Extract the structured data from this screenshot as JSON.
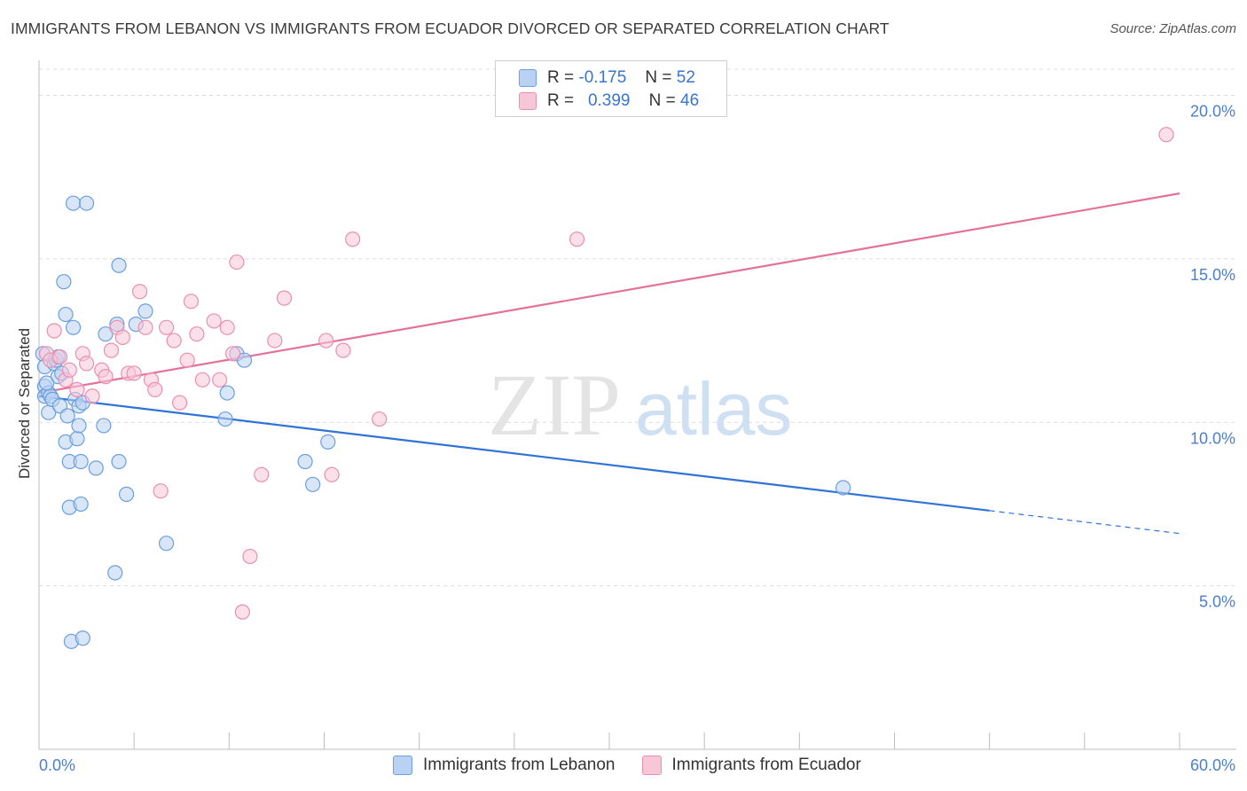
{
  "title": "IMMIGRANTS FROM LEBANON VS IMMIGRANTS FROM ECUADOR DIVORCED OR SEPARATED CORRELATION CHART",
  "source": "Source: ZipAtlas.com",
  "watermark": {
    "zip": "ZIP",
    "atlas": "atlas"
  },
  "legend": {
    "rows": [
      {
        "r_label": "R =",
        "r_value": "-0.175",
        "n_label": "N =",
        "n_value": "52"
      },
      {
        "r_label": "R =",
        "r_value": "0.399",
        "n_label": "N =",
        "n_value": "46"
      }
    ]
  },
  "colors": {
    "lebanon": "#6a9fe0",
    "lebanon_fill": "#b9d2f3",
    "lebanon_line": "#2f73d6",
    "ecuador": "#eb8fb0",
    "ecuador_fill": "#f7c7d8",
    "ecuador_line": "#e4719a",
    "tick_label": "#4a7fcf",
    "grid": "#dcdcdc"
  },
  "chart_data": {
    "type": "scatter",
    "title": "IMMIGRANTS FROM LEBANON VS IMMIGRANTS FROM ECUADOR DIVORCED OR SEPARATED CORRELATION CHART",
    "ylabel": "Divorced or Separated",
    "xlabel": "",
    "xlim": [
      0,
      60
    ],
    "ylim": [
      0,
      20.8
    ],
    "x_tick_labels": [
      "0.0%",
      "60.0%"
    ],
    "y_ticks": [
      {
        "value": 5,
        "label": "5.0%"
      },
      {
        "value": 10,
        "label": "10.0%"
      },
      {
        "value": 15,
        "label": "15.0%"
      },
      {
        "value": 20,
        "label": "20.0%"
      }
    ],
    "grid": "horizontal dashed",
    "legend_position": "top-center",
    "series": [
      {
        "name": "Immigrants from Lebanon",
        "r": -0.175,
        "n": 52,
        "trend": {
          "x0": 0,
          "y0": 10.8,
          "x1": 60,
          "y1": 6.6,
          "solid_until_x": 50
        },
        "points": [
          [
            0.2,
            12.1
          ],
          [
            0.3,
            11.7
          ],
          [
            0.3,
            11.1
          ],
          [
            0.3,
            10.8
          ],
          [
            0.5,
            10.9
          ],
          [
            0.5,
            10.3
          ],
          [
            0.6,
            10.8
          ],
          [
            0.7,
            10.7
          ],
          [
            0.8,
            11.8
          ],
          [
            0.9,
            11.9
          ],
          [
            1.0,
            11.4
          ],
          [
            1.1,
            10.5
          ],
          [
            1.2,
            11.5
          ],
          [
            1.3,
            14.3
          ],
          [
            1.4,
            13.3
          ],
          [
            1.4,
            9.4
          ],
          [
            1.5,
            10.2
          ],
          [
            1.6,
            7.4
          ],
          [
            1.6,
            8.8
          ],
          [
            1.7,
            3.3
          ],
          [
            1.8,
            12.9
          ],
          [
            1.8,
            16.7
          ],
          [
            1.9,
            10.7
          ],
          [
            2.0,
            9.5
          ],
          [
            2.1,
            9.9
          ],
          [
            2.1,
            10.5
          ],
          [
            2.2,
            8.8
          ],
          [
            2.2,
            7.5
          ],
          [
            2.3,
            10.6
          ],
          [
            2.3,
            3.4
          ],
          [
            2.5,
            16.7
          ],
          [
            3.0,
            8.6
          ],
          [
            3.4,
            9.9
          ],
          [
            3.5,
            12.7
          ],
          [
            4.0,
            5.4
          ],
          [
            4.1,
            13.0
          ],
          [
            4.2,
            8.8
          ],
          [
            4.2,
            14.8
          ],
          [
            4.6,
            7.8
          ],
          [
            5.1,
            13.0
          ],
          [
            5.6,
            13.4
          ],
          [
            6.7,
            6.3
          ],
          [
            9.8,
            10.1
          ],
          [
            9.9,
            10.9
          ],
          [
            10.4,
            12.1
          ],
          [
            10.8,
            11.9
          ],
          [
            14.0,
            8.8
          ],
          [
            14.4,
            8.1
          ],
          [
            15.2,
            9.4
          ],
          [
            42.3,
            8.0
          ],
          [
            0.4,
            11.2
          ],
          [
            1.0,
            12.0
          ]
        ]
      },
      {
        "name": "Immigrants from Ecuador",
        "r": 0.399,
        "n": 46,
        "trend": {
          "x0": 0,
          "y0": 10.9,
          "x1": 60,
          "y1": 17.0
        },
        "points": [
          [
            0.4,
            12.1
          ],
          [
            0.6,
            11.9
          ],
          [
            0.8,
            12.8
          ],
          [
            1.1,
            12.0
          ],
          [
            1.4,
            11.3
          ],
          [
            1.6,
            11.6
          ],
          [
            2.0,
            11.0
          ],
          [
            2.3,
            12.1
          ],
          [
            2.5,
            11.8
          ],
          [
            2.8,
            10.8
          ],
          [
            3.3,
            11.6
          ],
          [
            3.5,
            11.4
          ],
          [
            3.8,
            12.2
          ],
          [
            4.1,
            12.9
          ],
          [
            4.4,
            12.6
          ],
          [
            4.7,
            11.5
          ],
          [
            5.0,
            11.5
          ],
          [
            5.3,
            14.0
          ],
          [
            5.6,
            12.9
          ],
          [
            5.9,
            11.3
          ],
          [
            6.1,
            11.0
          ],
          [
            6.4,
            7.9
          ],
          [
            6.7,
            12.9
          ],
          [
            7.1,
            12.5
          ],
          [
            7.4,
            10.6
          ],
          [
            7.8,
            11.9
          ],
          [
            8.0,
            13.7
          ],
          [
            8.3,
            12.7
          ],
          [
            8.6,
            11.3
          ],
          [
            9.2,
            13.1
          ],
          [
            9.5,
            11.3
          ],
          [
            9.9,
            12.9
          ],
          [
            10.2,
            12.1
          ],
          [
            10.4,
            14.9
          ],
          [
            10.7,
            4.2
          ],
          [
            11.1,
            5.9
          ],
          [
            11.7,
            8.4
          ],
          [
            12.4,
            12.5
          ],
          [
            12.9,
            13.8
          ],
          [
            15.1,
            12.5
          ],
          [
            15.4,
            8.4
          ],
          [
            16.0,
            12.2
          ],
          [
            16.5,
            15.6
          ],
          [
            17.9,
            10.1
          ],
          [
            28.3,
            15.6
          ],
          [
            59.3,
            18.8
          ]
        ]
      }
    ]
  }
}
